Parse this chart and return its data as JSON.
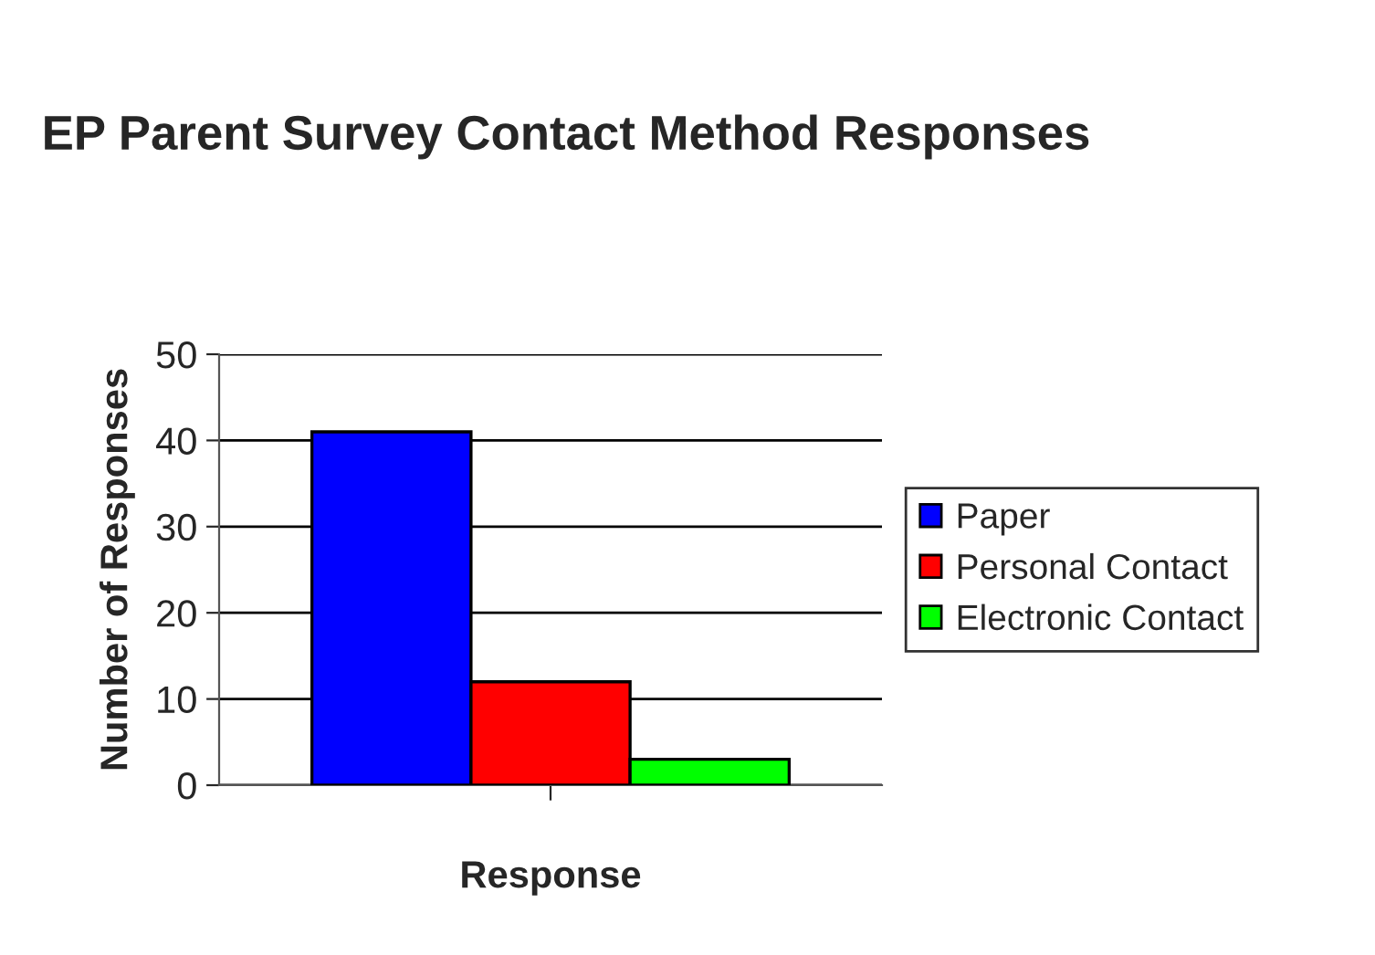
{
  "chart_data": {
    "type": "bar",
    "title": "EP Parent Survey Contact Method Responses",
    "xlabel": "Response",
    "ylabel": "Number of Responses",
    "categories": [
      null
    ],
    "series": [
      {
        "name": "Paper",
        "color": "#0000ff",
        "values": [
          41
        ]
      },
      {
        "name": "Personal Contact",
        "color": "#ff0000",
        "values": [
          12
        ]
      },
      {
        "name": "Electronic Contact",
        "color": "#00ff00",
        "values": [
          3
        ]
      }
    ],
    "ylim": [
      0,
      50
    ],
    "yticks": [
      0,
      10,
      20,
      30,
      40,
      50
    ],
    "grid": "y",
    "legend": "right"
  }
}
